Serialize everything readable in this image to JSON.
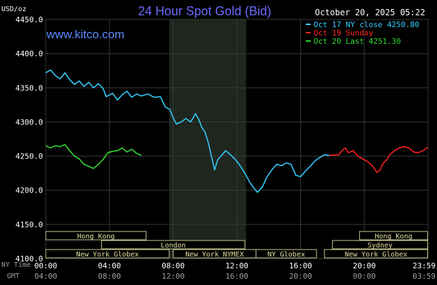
{
  "chart_data": {
    "type": "line",
    "title": "24 Hour Spot Gold (Bid)",
    "source": "www.kitco.com",
    "date_label": "October 20, 2025 05:22",
    "ylabel": "USD/oz",
    "ylim": [
      4100,
      4450
    ],
    "yticks": [
      "4450.0",
      "4400.0",
      "4350.0",
      "4300.0",
      "4250.0",
      "4200.0",
      "4150.0",
      "4100.0"
    ],
    "xlim": [
      0,
      24
    ],
    "ny_time_label": "NY Time",
    "gmt_label": "GMT",
    "xticks_ny": [
      "00:00",
      "04:00",
      "08:00",
      "12:00",
      "16:00",
      "20:00",
      "23:59"
    ],
    "xticks_gmt": [
      "04:00",
      "08:00",
      "12:00",
      "16:00",
      "20:00",
      "00:00",
      "03:59"
    ],
    "shaded_session": [
      7.75,
      12.58
    ],
    "legend": [
      {
        "label": "Oct 17 NY close 4250.80",
        "color": "#33ccff"
      },
      {
        "label": "Oct 19 Sunday",
        "color": "#ff2020"
      },
      {
        "label": "Oct 20 Last 4251.30",
        "color": "#33dd33"
      }
    ],
    "series": [
      {
        "name": "Oct 17 NY close 4250.80",
        "color": "#33ccff",
        "points": [
          [
            0,
            4372
          ],
          [
            0.3,
            4376
          ],
          [
            0.6,
            4368
          ],
          [
            0.9,
            4363
          ],
          [
            1.2,
            4372
          ],
          [
            1.5,
            4362
          ],
          [
            1.8,
            4355
          ],
          [
            2.1,
            4360
          ],
          [
            2.4,
            4352
          ],
          [
            2.7,
            4358
          ],
          [
            3.0,
            4350
          ],
          [
            3.3,
            4356
          ],
          [
            3.6,
            4349
          ],
          [
            3.8,
            4337
          ],
          [
            4.2,
            4342
          ],
          [
            4.5,
            4332
          ],
          [
            4.8,
            4340
          ],
          [
            5.1,
            4345
          ],
          [
            5.4,
            4336
          ],
          [
            5.7,
            4341
          ],
          [
            6.0,
            4338
          ],
          [
            6.4,
            4341
          ],
          [
            6.8,
            4336
          ],
          [
            7.2,
            4337
          ],
          [
            7.5,
            4322
          ],
          [
            7.8,
            4318
          ],
          [
            8.0,
            4306
          ],
          [
            8.2,
            4297
          ],
          [
            8.5,
            4300
          ],
          [
            8.8,
            4305
          ],
          [
            9.1,
            4300
          ],
          [
            9.4,
            4312
          ],
          [
            9.6,
            4304
          ],
          [
            9.8,
            4292
          ],
          [
            10.0,
            4285
          ],
          [
            10.2,
            4270
          ],
          [
            10.4,
            4250
          ],
          [
            10.6,
            4230
          ],
          [
            10.8,
            4245
          ],
          [
            11.0,
            4250
          ],
          [
            11.3,
            4258
          ],
          [
            11.6,
            4252
          ],
          [
            11.9,
            4245
          ],
          [
            12.2,
            4236
          ],
          [
            12.5,
            4225
          ],
          [
            12.8,
            4212
          ],
          [
            13.1,
            4202
          ],
          [
            13.3,
            4197
          ],
          [
            13.6,
            4205
          ],
          [
            13.9,
            4220
          ],
          [
            14.2,
            4230
          ],
          [
            14.5,
            4238
          ],
          [
            14.8,
            4236
          ],
          [
            15.1,
            4240
          ],
          [
            15.4,
            4238
          ],
          [
            15.7,
            4222
          ],
          [
            16.0,
            4220
          ],
          [
            16.3,
            4228
          ],
          [
            16.6,
            4235
          ],
          [
            16.9,
            4243
          ],
          [
            17.2,
            4248
          ],
          [
            17.5,
            4252
          ],
          [
            17.8,
            4251
          ]
        ]
      },
      {
        "name": "Oct 19 Sunday",
        "color": "#ff2020",
        "points": [
          [
            17.8,
            4251
          ],
          [
            18.4,
            4252
          ],
          [
            18.6,
            4258
          ],
          [
            18.8,
            4262
          ],
          [
            19.0,
            4255
          ],
          [
            19.3,
            4258
          ],
          [
            19.6,
            4250
          ],
          [
            19.9,
            4246
          ],
          [
            20.2,
            4242
          ],
          [
            20.5,
            4236
          ],
          [
            20.8,
            4226
          ],
          [
            21.0,
            4230
          ],
          [
            21.2,
            4240
          ],
          [
            21.4,
            4244
          ],
          [
            21.6,
            4252
          ],
          [
            21.9,
            4258
          ],
          [
            22.2,
            4262
          ],
          [
            22.5,
            4264
          ],
          [
            22.8,
            4262
          ],
          [
            23.1,
            4256
          ],
          [
            23.4,
            4255
          ],
          [
            23.7,
            4258
          ],
          [
            23.98,
            4263
          ]
        ]
      },
      {
        "name": "Oct 20 Last 4251.30",
        "color": "#33dd33",
        "points": [
          [
            0,
            4265
          ],
          [
            0.3,
            4262
          ],
          [
            0.6,
            4265
          ],
          [
            0.9,
            4264
          ],
          [
            1.2,
            4267
          ],
          [
            1.5,
            4258
          ],
          [
            1.8,
            4250
          ],
          [
            2.1,
            4246
          ],
          [
            2.4,
            4238
          ],
          [
            2.7,
            4235
          ],
          [
            3.0,
            4232
          ],
          [
            3.3,
            4238
          ],
          [
            3.6,
            4245
          ],
          [
            3.9,
            4255
          ],
          [
            4.2,
            4257
          ],
          [
            4.5,
            4258
          ],
          [
            4.8,
            4262
          ],
          [
            5.1,
            4256
          ],
          [
            5.4,
            4260
          ],
          [
            5.7,
            4254
          ],
          [
            6.0,
            4251
          ]
        ]
      }
    ]
  },
  "markets": {
    "row1": [
      {
        "label": "Hong Kong",
        "start": 0,
        "end": 6.3
      },
      {
        "label": "Hong Kong",
        "start": 19.7,
        "end": 23.98
      }
    ],
    "row2": [
      {
        "label": "London",
        "start": 3.5,
        "end": 12.5
      },
      {
        "label": "Sydney",
        "start": 18.0,
        "end": 23.98
      }
    ],
    "row3": [
      {
        "label": "New York Globex",
        "start": 0,
        "end": 7.75
      },
      {
        "label": "New York NYMEX",
        "start": 8.0,
        "end": 13.2
      },
      {
        "label": "NY Globex",
        "start": 13.2,
        "end": 17.0
      },
      {
        "label": "New York Globex",
        "start": 17.5,
        "end": 23.98
      }
    ]
  }
}
